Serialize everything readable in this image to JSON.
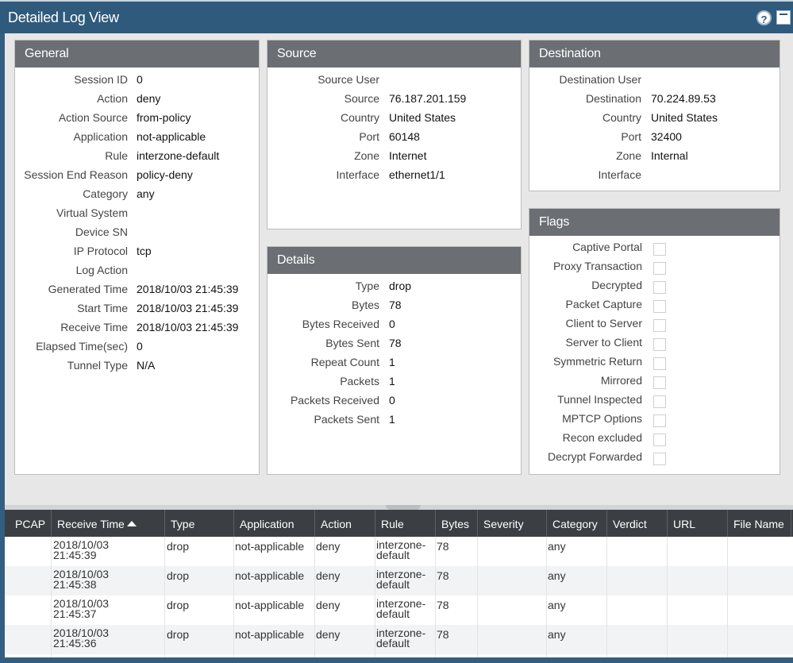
{
  "window": {
    "title": "Detailed Log View"
  },
  "general": {
    "header": "General",
    "fields": [
      {
        "label": "Session ID",
        "value": "0"
      },
      {
        "label": "Action",
        "value": "deny"
      },
      {
        "label": "Action Source",
        "value": "from-policy"
      },
      {
        "label": "Application",
        "value": "not-applicable"
      },
      {
        "label": "Rule",
        "value": "interzone-default"
      },
      {
        "label": "Session End Reason",
        "value": "policy-deny"
      },
      {
        "label": "Category",
        "value": "any"
      },
      {
        "label": "Virtual System",
        "value": ""
      },
      {
        "label": "Device SN",
        "value": ""
      },
      {
        "label": "IP Protocol",
        "value": "tcp"
      },
      {
        "label": "Log Action",
        "value": ""
      },
      {
        "label": "Generated Time",
        "value": "2018/10/03 21:45:39"
      },
      {
        "label": "Start Time",
        "value": "2018/10/03 21:45:39"
      },
      {
        "label": "Receive Time",
        "value": "2018/10/03 21:45:39"
      },
      {
        "label": "Elapsed Time(sec)",
        "value": "0"
      },
      {
        "label": "Tunnel Type",
        "value": "N/A"
      }
    ]
  },
  "source": {
    "header": "Source",
    "fields": [
      {
        "label": "Source User",
        "value": ""
      },
      {
        "label": "Source",
        "value": "76.187.201.159"
      },
      {
        "label": "Country",
        "value": "United States"
      },
      {
        "label": "Port",
        "value": "60148"
      },
      {
        "label": "Zone",
        "value": "Internet"
      },
      {
        "label": "Interface",
        "value": "ethernet1/1"
      }
    ]
  },
  "destination": {
    "header": "Destination",
    "fields": [
      {
        "label": "Destination User",
        "value": ""
      },
      {
        "label": "Destination",
        "value": "70.224.89.53"
      },
      {
        "label": "Country",
        "value": "United States"
      },
      {
        "label": "Port",
        "value": "32400"
      },
      {
        "label": "Zone",
        "value": "Internal"
      },
      {
        "label": "Interface",
        "value": ""
      }
    ]
  },
  "details": {
    "header": "Details",
    "fields": [
      {
        "label": "Type",
        "value": "drop"
      },
      {
        "label": "Bytes",
        "value": "78"
      },
      {
        "label": "Bytes Received",
        "value": "0"
      },
      {
        "label": "Bytes Sent",
        "value": "78"
      },
      {
        "label": "Repeat Count",
        "value": "1"
      },
      {
        "label": "Packets",
        "value": "1"
      },
      {
        "label": "Packets Received",
        "value": "0"
      },
      {
        "label": "Packets Sent",
        "value": "1"
      }
    ]
  },
  "flags": {
    "header": "Flags",
    "items": [
      {
        "label": "Captive Portal",
        "checked": false
      },
      {
        "label": "Proxy Transaction",
        "checked": false
      },
      {
        "label": "Decrypted",
        "checked": false
      },
      {
        "label": "Packet Capture",
        "checked": false
      },
      {
        "label": "Client to Server",
        "checked": false
      },
      {
        "label": "Server to Client",
        "checked": false
      },
      {
        "label": "Symmetric Return",
        "checked": false
      },
      {
        "label": "Mirrored",
        "checked": false
      },
      {
        "label": "Tunnel Inspected",
        "checked": false
      },
      {
        "label": "MPTCP Options",
        "checked": false
      },
      {
        "label": "Recon excluded",
        "checked": false
      },
      {
        "label": "Decrypt Forwarded",
        "checked": false
      }
    ]
  },
  "log_table": {
    "columns": [
      "PCAP",
      "Receive Time",
      "Type",
      "Application",
      "Action",
      "Rule",
      "Bytes",
      "Severity",
      "Category",
      "Verdict",
      "URL",
      "File Name"
    ],
    "sort_column": "Receive Time",
    "sort_direction": "ascending",
    "rows": [
      {
        "time_date": "2018/10/03",
        "time_clock": "21:45:39",
        "type": "drop",
        "application": "not-applicable",
        "action": "deny",
        "rule_line1": "interzone-",
        "rule_line2": "default",
        "bytes": "78",
        "category": "any"
      },
      {
        "time_date": "2018/10/03",
        "time_clock": "21:45:38",
        "type": "drop",
        "application": "not-applicable",
        "action": "deny",
        "rule_line1": "interzone-",
        "rule_line2": "default",
        "bytes": "78",
        "category": "any"
      },
      {
        "time_date": "2018/10/03",
        "time_clock": "21:45:37",
        "type": "drop",
        "application": "not-applicable",
        "action": "deny",
        "rule_line1": "interzone-",
        "rule_line2": "default",
        "bytes": "78",
        "category": "any"
      },
      {
        "time_date": "2018/10/03",
        "time_clock": "21:45:36",
        "type": "drop",
        "application": "not-applicable",
        "action": "deny",
        "rule_line1": "interzone-",
        "rule_line2": "default",
        "bytes": "78",
        "category": "any"
      }
    ]
  }
}
